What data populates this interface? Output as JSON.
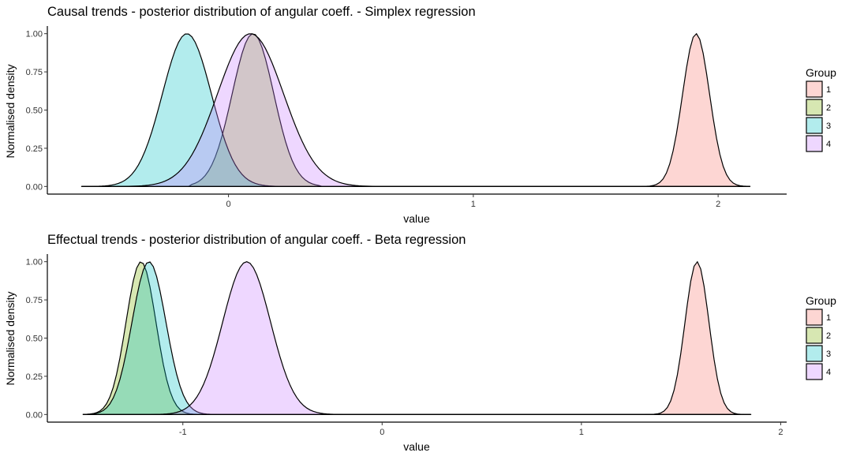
{
  "chart_data": [
    {
      "type": "area",
      "title": "Causal trends - posterior distribution of angular coeff. - Simplex regression",
      "xlabel": "value",
      "ylabel": "Normalised density",
      "xlim": [
        -0.74,
        2.28
      ],
      "ylim": [
        -0.05,
        1.05
      ],
      "x_ticks": [
        0,
        1,
        2
      ],
      "y_ticks": [
        0,
        0.25,
        0.5,
        0.75,
        1
      ],
      "y_tick_labels": [
        "0.00",
        "0.25",
        "0.50",
        "0.75",
        "1.00"
      ],
      "grid": false,
      "legend_position": "right",
      "legend": {
        "title": "Group",
        "entries": [
          "1",
          "2",
          "3",
          "4"
        ]
      },
      "series": [
        {
          "name": "1",
          "color": "#F8766D",
          "mean": 1.91,
          "sd": 0.055,
          "xrange": [
            1.68,
            2.13
          ]
        },
        {
          "name": "2",
          "color": "#7CAE00",
          "mean": 0.1,
          "sd": 0.085,
          "xrange": [
            -0.16,
            0.38
          ]
        },
        {
          "name": "3",
          "color": "#00BFC4",
          "mean": -0.17,
          "sd": 0.1,
          "xrange": [
            -0.6,
            0.2
          ]
        },
        {
          "name": "4",
          "color": "#C77CFF",
          "mean": 0.09,
          "sd": 0.135,
          "xrange": [
            -0.6,
            0.6
          ]
        }
      ]
    },
    {
      "type": "area",
      "title": "Effectual trends - posterior distribution of angular coeff. - Beta regression",
      "xlabel": "value",
      "ylabel": "Normalised density",
      "xlim": [
        -1.68,
        2.03
      ],
      "ylim": [
        -0.05,
        1.05
      ],
      "x_ticks": [
        -1,
        0,
        1,
        2
      ],
      "y_ticks": [
        0,
        0.25,
        0.5,
        0.75,
        1
      ],
      "y_tick_labels": [
        "0.00",
        "0.25",
        "0.50",
        "0.75",
        "1.00"
      ],
      "grid": false,
      "legend_position": "right",
      "legend": {
        "title": "Group",
        "entries": [
          "1",
          "2",
          "3",
          "4"
        ]
      },
      "series": [
        {
          "name": "1",
          "color": "#F8766D",
          "mean": 1.58,
          "sd": 0.06,
          "xrange": [
            1.33,
            1.85
          ]
        },
        {
          "name": "2",
          "color": "#7CAE00",
          "mean": -1.21,
          "sd": 0.075,
          "xrange": [
            -1.5,
            -0.9
          ]
        },
        {
          "name": "3",
          "color": "#00BFC4",
          "mean": -1.17,
          "sd": 0.085,
          "xrange": [
            -1.5,
            -0.8
          ]
        },
        {
          "name": "4",
          "color": "#C77CFF",
          "mean": -0.68,
          "sd": 0.12,
          "xrange": [
            -1.15,
            -0.2
          ]
        }
      ]
    }
  ]
}
